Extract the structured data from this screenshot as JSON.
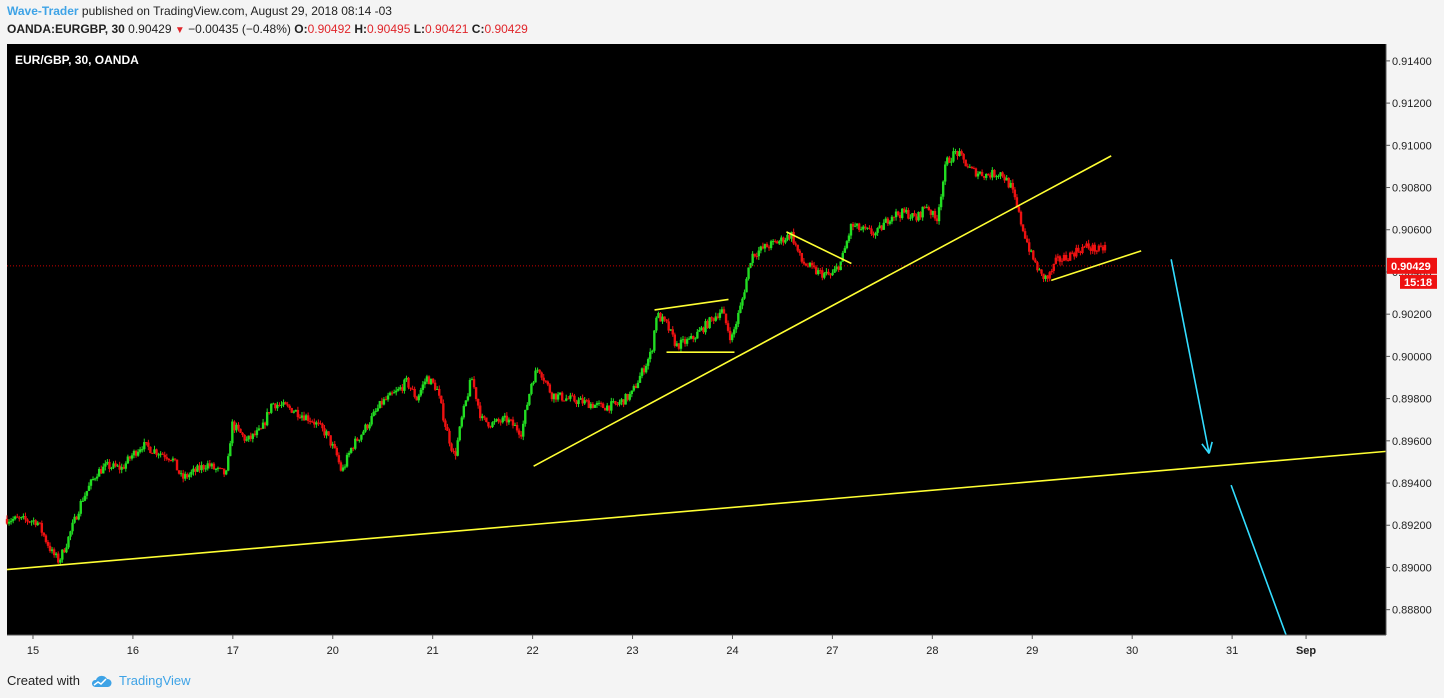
{
  "header": {
    "author": "Wave-Trader",
    "published_text": " published on TradingView.com, August 29, 2018 08:14 -03",
    "symbol": "OANDA:EURGBP, 30",
    "last_price": "0.90429",
    "change_arrow": "▼",
    "change": "−0.00435 (−0.48%)",
    "open_label": "O:",
    "open": "0.90492",
    "high_label": "H:",
    "high": "0.90495",
    "low_label": "L:",
    "low": "0.90421",
    "close_label": "C:",
    "close": "0.90429"
  },
  "footer": {
    "created_with": "Created with",
    "brand": "TradingView",
    "logo_icon": "tradingview-cloud-icon"
  },
  "colors": {
    "background": "#000000",
    "up": "#22dd22",
    "down": "#ee1111",
    "trendline": "#ffff33",
    "arrow": "#33ddff",
    "price_line": "#cc0000",
    "frame": "#f4f4f4"
  },
  "chart_data": {
    "type": "candlestick",
    "title": "EUR/GBP, 30, OANDA",
    "ylim": [
      0.8868,
      0.9148
    ],
    "y_ticks": [
      "0.91400",
      "0.91200",
      "0.91000",
      "0.90800",
      "0.90600",
      "0.90400",
      "0.90200",
      "0.90000",
      "0.89800",
      "0.89600",
      "0.89400",
      "0.89200",
      "0.89000",
      "0.88800"
    ],
    "x_ticks": [
      {
        "label": "15",
        "t": 0.26
      },
      {
        "label": "16",
        "t": 1.26
      },
      {
        "label": "17",
        "t": 2.26
      },
      {
        "label": "20",
        "t": 3.26
      },
      {
        "label": "21",
        "t": 4.26
      },
      {
        "label": "22",
        "t": 5.26
      },
      {
        "label": "23",
        "t": 6.26
      },
      {
        "label": "24",
        "t": 7.26
      },
      {
        "label": "27",
        "t": 8.26
      },
      {
        "label": "28",
        "t": 9.26
      },
      {
        "label": "29",
        "t": 10.26
      },
      {
        "label": "30",
        "t": 11.26
      },
      {
        "label": "31",
        "t": 12.26
      },
      {
        "label": "Sep",
        "t": 13.0
      }
    ],
    "xlim": [
      0,
      13.8
    ],
    "current_price": {
      "value": 0.90429,
      "label": "0.90429",
      "countdown": "15:18"
    },
    "path_points": [
      [
        0.0,
        0.8923
      ],
      [
        0.3,
        0.8922
      ],
      [
        0.45,
        0.8907
      ],
      [
        0.52,
        0.8903
      ],
      [
        0.6,
        0.8912
      ],
      [
        0.75,
        0.8932
      ],
      [
        0.9,
        0.8945
      ],
      [
        1.0,
        0.8948
      ],
      [
        1.15,
        0.8947
      ],
      [
        1.25,
        0.8953
      ],
      [
        1.35,
        0.8958
      ],
      [
        1.5,
        0.8955
      ],
      [
        1.65,
        0.8952
      ],
      [
        1.75,
        0.8942
      ],
      [
        1.9,
        0.8946
      ],
      [
        2.0,
        0.8949
      ],
      [
        2.1,
        0.8946
      ],
      [
        2.2,
        0.8944
      ],
      [
        2.25,
        0.8968
      ],
      [
        2.4,
        0.896
      ],
      [
        2.55,
        0.8965
      ],
      [
        2.65,
        0.8978
      ],
      [
        2.85,
        0.8975
      ],
      [
        3.05,
        0.897
      ],
      [
        3.2,
        0.8963
      ],
      [
        3.3,
        0.8953
      ],
      [
        3.35,
        0.8945
      ],
      [
        3.45,
        0.8957
      ],
      [
        3.6,
        0.8967
      ],
      [
        3.75,
        0.8978
      ],
      [
        3.9,
        0.8983
      ],
      [
        4.0,
        0.8988
      ],
      [
        4.1,
        0.898
      ],
      [
        4.2,
        0.899
      ],
      [
        4.3,
        0.8985
      ],
      [
        4.4,
        0.8965
      ],
      [
        4.48,
        0.8952
      ],
      [
        4.55,
        0.897
      ],
      [
        4.65,
        0.899
      ],
      [
        4.75,
        0.897
      ],
      [
        4.85,
        0.8968
      ],
      [
        5.0,
        0.897
      ],
      [
        5.1,
        0.8966
      ],
      [
        5.15,
        0.8964
      ],
      [
        5.25,
        0.8988
      ],
      [
        5.32,
        0.8995
      ],
      [
        5.45,
        0.8982
      ],
      [
        5.6,
        0.898
      ],
      [
        5.8,
        0.8978
      ],
      [
        5.95,
        0.8976
      ],
      [
        6.1,
        0.8977
      ],
      [
        6.25,
        0.8982
      ],
      [
        6.35,
        0.8992
      ],
      [
        6.45,
        0.9002
      ],
      [
        6.5,
        0.902
      ],
      [
        6.6,
        0.9015
      ],
      [
        6.7,
        0.9005
      ],
      [
        6.85,
        0.9008
      ],
      [
        7.0,
        0.9015
      ],
      [
        7.15,
        0.9022
      ],
      [
        7.25,
        0.9008
      ],
      [
        7.35,
        0.9025
      ],
      [
        7.45,
        0.9048
      ],
      [
        7.6,
        0.9052
      ],
      [
        7.75,
        0.9055
      ],
      [
        7.85,
        0.9058
      ],
      [
        7.95,
        0.9045
      ],
      [
        8.1,
        0.904
      ],
      [
        8.25,
        0.9038
      ],
      [
        8.35,
        0.9045
      ],
      [
        8.45,
        0.9062
      ],
      [
        8.55,
        0.906
      ],
      [
        8.7,
        0.9058
      ],
      [
        8.85,
        0.9067
      ],
      [
        9.0,
        0.9068
      ],
      [
        9.1,
        0.9065
      ],
      [
        9.2,
        0.9072
      ],
      [
        9.3,
        0.9064
      ],
      [
        9.4,
        0.9092
      ],
      [
        9.5,
        0.9097
      ],
      [
        9.65,
        0.9088
      ],
      [
        9.8,
        0.9086
      ],
      [
        9.95,
        0.9087
      ],
      [
        10.05,
        0.908
      ],
      [
        10.15,
        0.9063
      ],
      [
        10.25,
        0.9048
      ],
      [
        10.35,
        0.9038
      ],
      [
        10.42,
        0.9037
      ],
      [
        10.5,
        0.9045
      ],
      [
        10.6,
        0.9047
      ],
      [
        10.7,
        0.905
      ],
      [
        10.8,
        0.9052
      ],
      [
        10.95,
        0.905
      ],
      [
        11.0,
        0.9053
      ]
    ],
    "trendlines": [
      {
        "name": "long-support",
        "points": [
          [
            0.0,
            0.8899
          ],
          [
            13.8,
            0.8955
          ]
        ]
      },
      {
        "name": "rising-support",
        "points": [
          [
            5.27,
            0.8948
          ],
          [
            11.05,
            0.9095
          ]
        ]
      },
      {
        "name": "flag-top",
        "points": [
          [
            6.48,
            0.9022
          ],
          [
            7.22,
            0.9027
          ]
        ]
      },
      {
        "name": "flag-bottom",
        "points": [
          [
            6.6,
            0.9002
          ],
          [
            7.28,
            0.9002
          ]
        ]
      },
      {
        "name": "pennant-top",
        "points": [
          [
            7.8,
            0.9059
          ],
          [
            8.45,
            0.9044
          ]
        ]
      },
      {
        "name": "wedge-bottom",
        "points": [
          [
            10.45,
            0.9036
          ],
          [
            11.35,
            0.905
          ]
        ]
      }
    ],
    "arrows": [
      {
        "name": "down-arrow-1",
        "points": [
          [
            11.65,
            0.9046
          ],
          [
            12.03,
            0.8954
          ]
        ]
      },
      {
        "name": "down-arrow-2",
        "points": [
          [
            12.25,
            0.8939
          ],
          [
            12.8,
            0.8868
          ]
        ]
      }
    ]
  }
}
